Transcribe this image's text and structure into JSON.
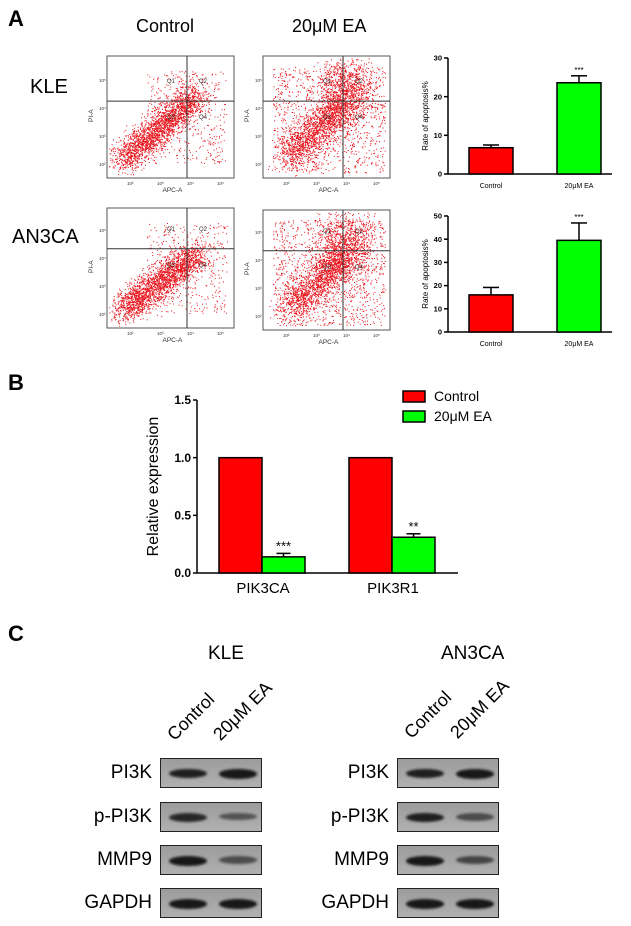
{
  "panels": {
    "a": "A",
    "b": "B",
    "c": "C"
  },
  "flow": {
    "col_labels": [
      "Control",
      "20μM EA"
    ],
    "row_labels": [
      "KLE",
      "AN3CA"
    ],
    "x_axis_label": "APC-A",
    "y_axis_label": "PI-A",
    "quadrants": [
      "Q1",
      "Q2",
      "Q3",
      "Q4"
    ],
    "ticks": [
      "10²",
      "10³",
      "10⁴",
      "10⁵"
    ]
  },
  "chart_data": [
    {
      "type": "bar",
      "panel": "A-KLE",
      "categories": [
        "Control",
        "20μM EA"
      ],
      "values": [
        6.8,
        23.6
      ],
      "errors": [
        0.7,
        1.8
      ],
      "annotations": [
        "",
        "***"
      ],
      "ylabel": "Rate of  apoptosis%",
      "ylim": [
        0,
        30
      ],
      "yticks": [
        "0",
        "10",
        "20",
        "30"
      ],
      "colors": [
        "#ff0000",
        "#00ff00"
      ]
    },
    {
      "type": "bar",
      "panel": "A-AN3CA",
      "categories": [
        "Control",
        "20μM EA"
      ],
      "values": [
        16,
        39.5
      ],
      "errors": [
        3.2,
        7.5
      ],
      "annotations": [
        "",
        "***"
      ],
      "ylabel": "Rate of  apoptosis%",
      "ylim": [
        0,
        50
      ],
      "yticks": [
        "0",
        "10",
        "20",
        "30",
        "40",
        "50"
      ],
      "colors": [
        "#ff0000",
        "#00ff00"
      ]
    },
    {
      "type": "bar",
      "panel": "B",
      "categories": [
        "PIK3CA",
        "PIK3R1"
      ],
      "series": [
        {
          "name": "Control",
          "values": [
            1.0,
            1.0
          ],
          "errors": [
            0,
            0
          ],
          "color": "#ff0000",
          "annotations": [
            "",
            ""
          ]
        },
        {
          "name": "20μM EA",
          "values": [
            0.14,
            0.31
          ],
          "errors": [
            0.03,
            0.03
          ],
          "color": "#00ff00",
          "annotations": [
            "***",
            "**"
          ]
        }
      ],
      "ylabel": "Relative expression",
      "ylim": [
        0,
        1.5
      ],
      "yticks": [
        "0.0",
        "0.5",
        "1.0",
        "1.5"
      ],
      "legend": "top-right"
    }
  ],
  "western": {
    "lane_labels": [
      "Control",
      "20μM EA"
    ],
    "cells": [
      {
        "name": "KLE",
        "bands": [
          {
            "label": "PI3K",
            "intensity": [
              0.9,
              0.95
            ]
          },
          {
            "label": "p-PI3K",
            "intensity": [
              0.85,
              0.55
            ]
          },
          {
            "label": "MMP9",
            "intensity": [
              0.95,
              0.6
            ]
          },
          {
            "label": "GAPDH",
            "intensity": [
              0.95,
              0.95
            ]
          }
        ]
      },
      {
        "name": "AN3CA",
        "bands": [
          {
            "label": "PI3K",
            "intensity": [
              0.9,
              0.95
            ]
          },
          {
            "label": "p-PI3K",
            "intensity": [
              0.9,
              0.6
            ]
          },
          {
            "label": "MMP9",
            "intensity": [
              0.95,
              0.65
            ]
          },
          {
            "label": "GAPDH",
            "intensity": [
              0.95,
              0.95
            ]
          }
        ]
      }
    ]
  }
}
